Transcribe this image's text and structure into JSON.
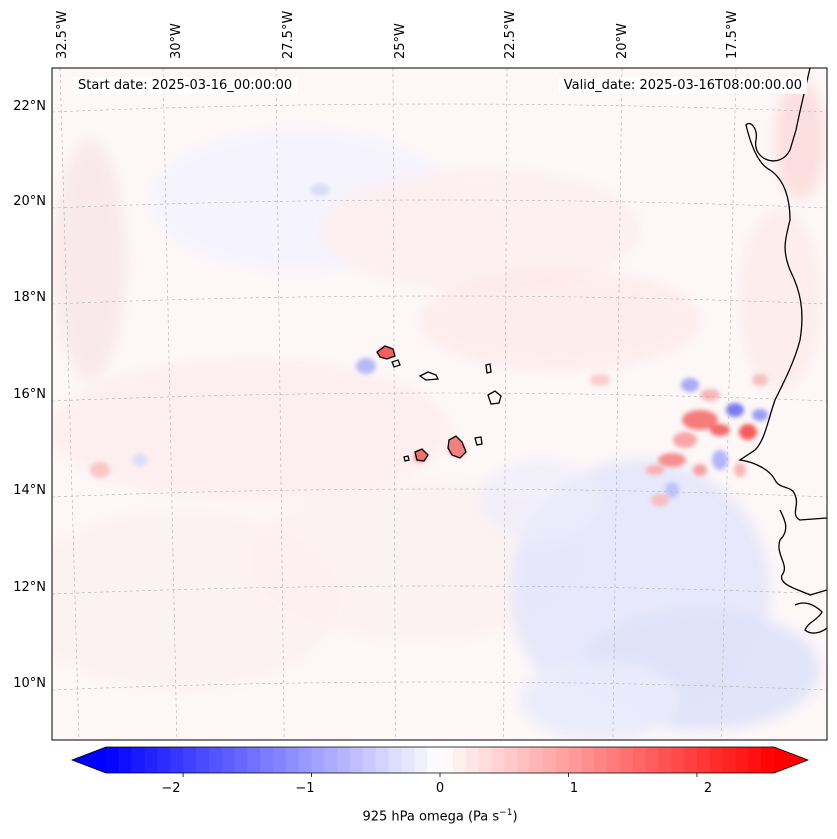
{
  "map": {
    "start_date": "Start date: 2025-03-16_00:00:00",
    "valid_date": "Valid_date: 2025-03-16T08:00:00.00",
    "lon_labels": [
      "32.5°W",
      "30°W",
      "27.5°W",
      "25°W",
      "22.5°W",
      "20°W",
      "17.5°W"
    ],
    "lat_labels": [
      "22°N",
      "20°N",
      "18°N",
      "16°N",
      "14°N",
      "12°N",
      "10°N"
    ],
    "field": "925 hPa omega",
    "projection": "lambert-conformal",
    "extent": {
      "lon": [
        -32.5,
        -16.1
      ],
      "lat": [
        8.8,
        22.8
      ]
    },
    "gridlines": true
  },
  "colorbar": {
    "label_text": "925 hPa omega (Pa s",
    "label_sup": "−1",
    "label_close": ")",
    "ticks": [
      "−2",
      "−1",
      "0",
      "1",
      "2"
    ],
    "range": [
      -2.6,
      2.6
    ],
    "cmap": "bwr",
    "extend": "both",
    "low_color": "#0000ff",
    "mid_color": "#ffffff",
    "high_color": "#ff0000"
  }
}
